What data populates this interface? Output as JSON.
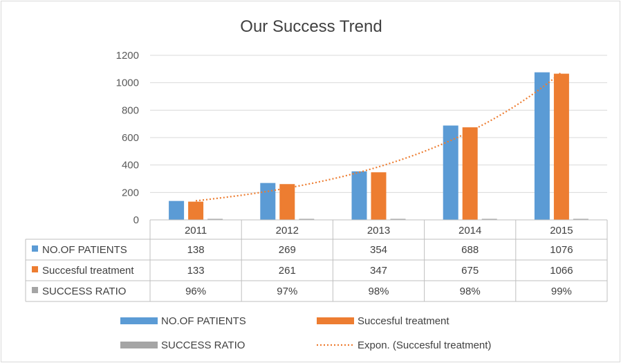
{
  "chart_data": {
    "type": "bar",
    "title": "Our Success Trend",
    "categories": [
      "2011",
      "2012",
      "2013",
      "2014",
      "2015"
    ],
    "series": [
      {
        "name": "NO.OF PATIENTS",
        "values": [
          138,
          269,
          354,
          688,
          1076
        ],
        "color": "#5b9bd5"
      },
      {
        "name": "Succesful treatment",
        "values": [
          133,
          261,
          347,
          675,
          1066
        ],
        "color": "#ed7d31"
      },
      {
        "name": "SUCCESS RATIO",
        "values": [
          0.96,
          0.97,
          0.98,
          0.98,
          0.99
        ],
        "color": "#a5a5a5"
      }
    ],
    "table_rows": [
      {
        "label": "NO.OF PATIENTS",
        "cells": [
          "138",
          "269",
          "354",
          "688",
          "1076"
        ]
      },
      {
        "label": "Succesful treatment",
        "cells": [
          "133",
          "261",
          "347",
          "675",
          "1066"
        ]
      },
      {
        "label": "SUCCESS RATIO",
        "cells": [
          "96%",
          "97%",
          "98%",
          "98%",
          "99%"
        ]
      }
    ],
    "trendline": {
      "name": "Expon. (Succesful treatment)",
      "type": "exponential",
      "series": "Succesful treatment",
      "color": "#ed7d31"
    },
    "ylim": [
      0,
      1200
    ],
    "yticks": [
      "0",
      "200",
      "400",
      "600",
      "800",
      "1000",
      "1200"
    ],
    "grid": true,
    "legend_position": "bottom",
    "data_table": true
  }
}
